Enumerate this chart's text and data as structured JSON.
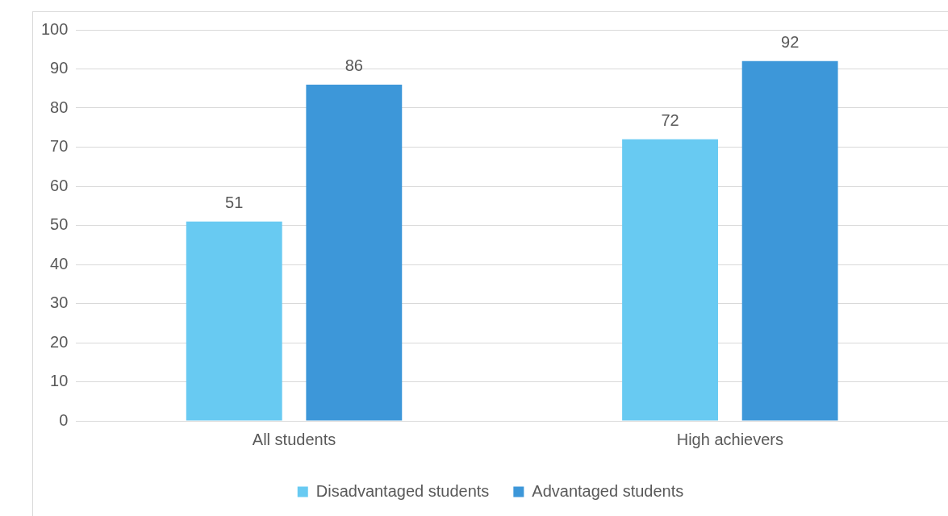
{
  "chart_data": {
    "type": "bar",
    "categories": [
      "All students",
      "High achievers"
    ],
    "series": [
      {
        "name": "Disadvantaged students",
        "color": "#68caf2",
        "values": [
          51,
          72
        ]
      },
      {
        "name": "Advantaged students",
        "color": "#3d97d9",
        "values": [
          86,
          92
        ]
      }
    ],
    "ylim": [
      0,
      100
    ],
    "yticks": [
      0,
      10,
      20,
      30,
      40,
      50,
      60,
      70,
      80,
      90,
      100
    ],
    "grid": "y",
    "legend": "bottom",
    "data_labels": true
  }
}
